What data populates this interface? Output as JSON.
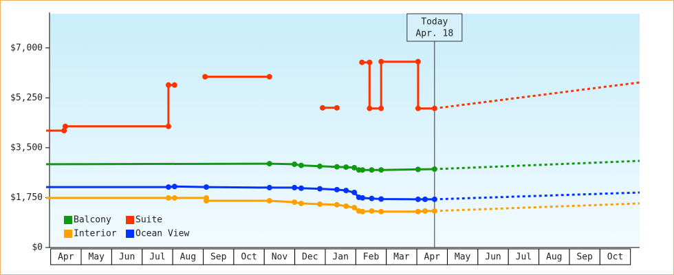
{
  "chart_data": {
    "type": "line",
    "xlim": [
      -0.15,
      19.3
    ],
    "xticks": [
      {
        "value": 0,
        "label": "Apr"
      },
      {
        "value": 1,
        "label": "May"
      },
      {
        "value": 2,
        "label": "Jun"
      },
      {
        "value": 3,
        "label": "Jul"
      },
      {
        "value": 4,
        "label": "Aug"
      },
      {
        "value": 5,
        "label": "Sep"
      },
      {
        "value": 6,
        "label": "Oct"
      },
      {
        "value": 7,
        "label": "Nov"
      },
      {
        "value": 8,
        "label": "Dec"
      },
      {
        "value": 9,
        "label": "Jan"
      },
      {
        "value": 10,
        "label": "Feb"
      },
      {
        "value": 11,
        "label": "Mar"
      },
      {
        "value": 12,
        "label": "Apr"
      },
      {
        "value": 13,
        "label": "May"
      },
      {
        "value": 14,
        "label": "Jun"
      },
      {
        "value": 15,
        "label": "Jul"
      },
      {
        "value": 16,
        "label": "Aug"
      },
      {
        "value": 17,
        "label": "Sep"
      },
      {
        "value": 18,
        "label": "Oct"
      }
    ],
    "ylim": [
      0,
      8200
    ],
    "yticks": [
      {
        "value": 0,
        "label": "$0"
      },
      {
        "value": 1750,
        "label": "$1,750"
      },
      {
        "value": 3500,
        "label": "$3,500"
      },
      {
        "value": 5250,
        "label": "$5,250"
      },
      {
        "value": 7000,
        "label": "$7,000"
      }
    ],
    "legend": "lower-left",
    "annotation": {
      "x": 12.58,
      "lines": [
        "Today",
        "Apr. 18"
      ]
    },
    "series": [
      {
        "name": "Balcony",
        "color": "#119911",
        "x": [
          -0.15,
          7.17,
          7.99,
          8.21,
          8.82,
          9.38,
          9.68,
          9.95,
          10.1,
          10.22,
          10.52,
          10.83,
          12.04,
          12.58
        ],
        "values": [
          2920,
          2940,
          2920,
          2880,
          2850,
          2830,
          2820,
          2800,
          2720,
          2720,
          2720,
          2720,
          2740,
          2750
        ],
        "projection": {
          "x": [
            12.58,
            19.3
          ],
          "values": [
            2750,
            3040
          ]
        }
      },
      {
        "name": "Suite",
        "color": "#ff3300",
        "x": [
          -0.15,
          0.44,
          0.48,
          3.86,
          3.86,
          4.06,
          null,
          5.06,
          7.17,
          null,
          8.91,
          9.38,
          null,
          10.2,
          10.45,
          10.45,
          10.83,
          10.83,
          12.04,
          12.04,
          12.58
        ],
        "values": [
          4100,
          4100,
          4250,
          4250,
          5700,
          5700,
          null,
          5990,
          5990,
          null,
          4900,
          4900,
          null,
          6495,
          6495,
          4880,
          4880,
          6520,
          6520,
          4880,
          4880
        ],
        "projection": {
          "x": [
            12.58,
            19.3
          ],
          "values": [
            4880,
            5790
          ]
        }
      },
      {
        "name": "Interior",
        "color": "#ffa000",
        "x": [
          -0.15,
          3.86,
          4.06,
          5.1,
          5.1,
          7.17,
          7.99,
          8.21,
          8.82,
          9.38,
          9.68,
          9.95,
          10.1,
          10.22,
          10.52,
          10.83,
          12.04,
          12.27,
          12.58
        ],
        "values": [
          1740,
          1740,
          1740,
          1740,
          1640,
          1640,
          1590,
          1545,
          1520,
          1500,
          1450,
          1400,
          1280,
          1260,
          1280,
          1260,
          1260,
          1280,
          1280
        ],
        "projection": {
          "x": [
            12.58,
            19.3
          ],
          "values": [
            1280,
            1545
          ]
        }
      },
      {
        "name": "Ocean View",
        "color": "#0033ff",
        "x": [
          -0.15,
          3.86,
          4.06,
          5.1,
          7.17,
          7.99,
          8.21,
          8.82,
          9.38,
          9.68,
          9.95,
          10.1,
          10.22,
          10.52,
          10.83,
          12.04,
          12.27,
          12.58
        ],
        "values": [
          2120,
          2120,
          2140,
          2120,
          2100,
          2100,
          2080,
          2060,
          2030,
          2000,
          1930,
          1760,
          1740,
          1720,
          1700,
          1690,
          1690,
          1690
        ],
        "projection": {
          "x": [
            12.58,
            19.3
          ],
          "values": [
            1690,
            1930
          ]
        }
      }
    ]
  }
}
